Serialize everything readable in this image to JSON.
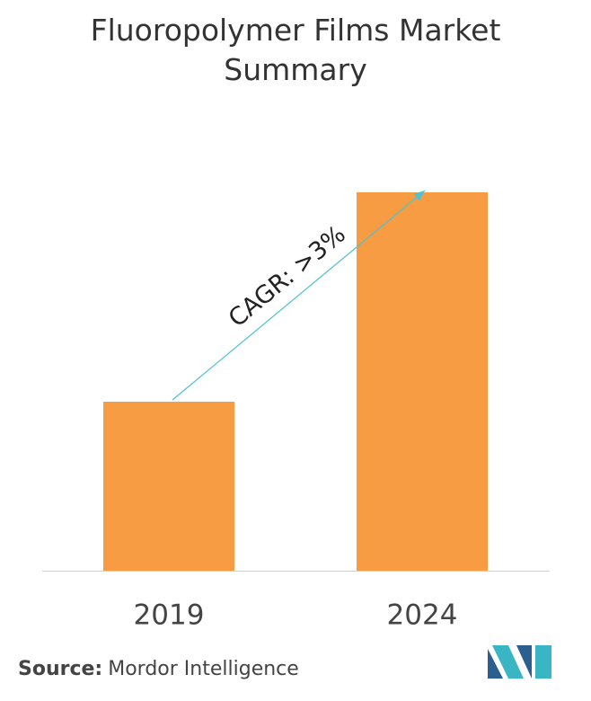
{
  "chart_data": {
    "type": "bar",
    "title": "Fluoropolymer Films Market Summary",
    "categories": [
      "2019",
      "2024"
    ],
    "values": [
      188,
      421
    ],
    "color": "#f89c44",
    "annotation": "CAGR: >3%",
    "arrow_color": "#4fc1d0",
    "source_label": "Source:",
    "source": "Mordor Intelligence"
  }
}
